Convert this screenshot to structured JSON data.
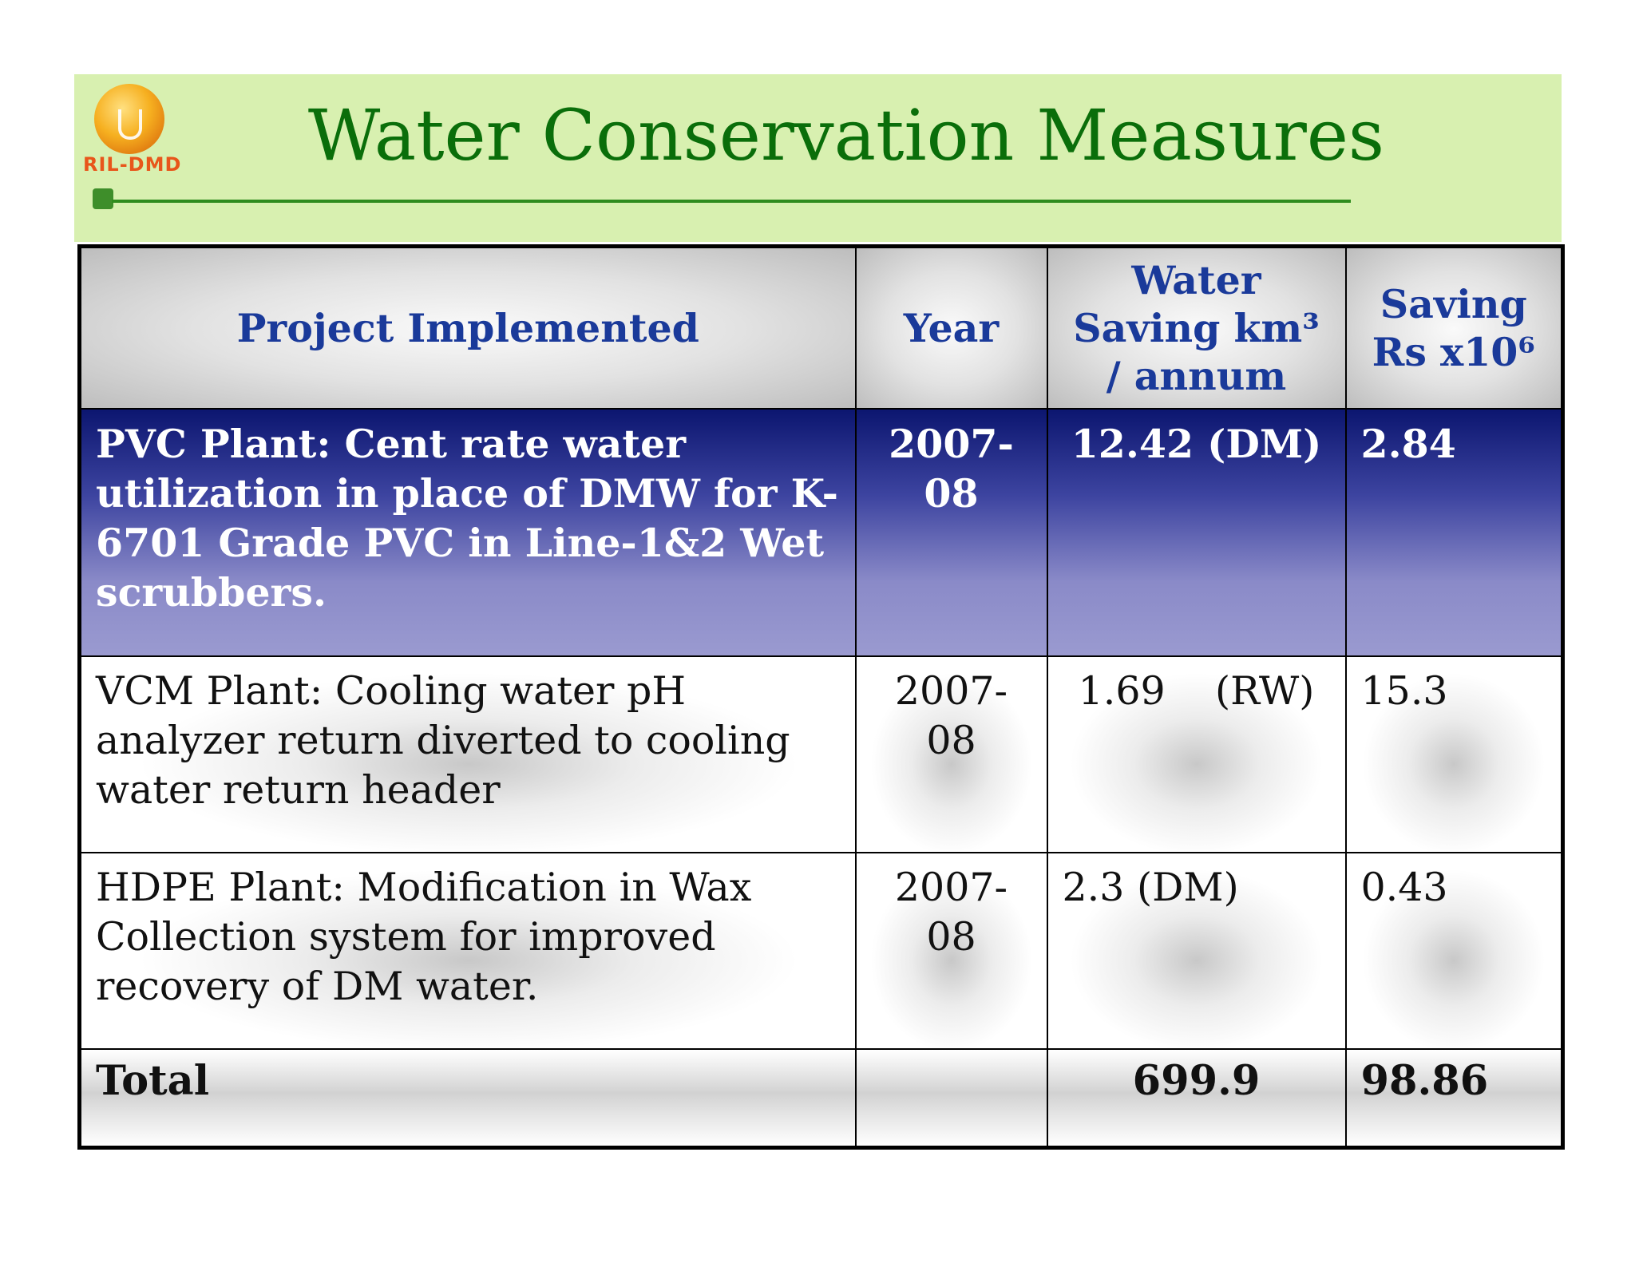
{
  "header": {
    "logo_text": "RIL-DMD",
    "title": "Water Conservation Measures"
  },
  "table": {
    "columns": [
      "Project Implemented",
      "Year",
      "Water Saving km³ / annum",
      "Saving Rs x10⁶"
    ],
    "rows": [
      {
        "project": "PVC Plant: Cent rate water utilization in place of DMW for K-6701 Grade PVC in Line-1&2 Wet scrubbers.",
        "year": "2007-08",
        "water_saving": "12.42 (DM)",
        "saving_rs": "2.84"
      },
      {
        "project": "VCM Plant: Cooling water pH analyzer return diverted to cooling water return header",
        "year": "2007-08",
        "water_saving": "1.69    (RW)",
        "saving_rs": "15.3"
      },
      {
        "project": "HDPE Plant: Modification in Wax Collection system for improved recovery of DM water.",
        "year": "2007-08",
        "water_saving": "2.3 (DM)",
        "saving_rs": "0.43"
      }
    ],
    "total": {
      "label": "Total",
      "year": "",
      "water_saving": "699.9",
      "saving_rs": "98.86"
    }
  }
}
